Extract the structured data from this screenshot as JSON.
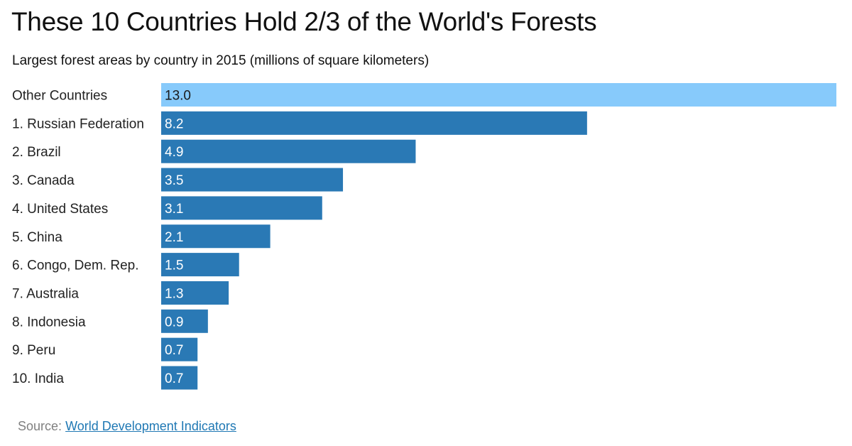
{
  "header": {
    "title": "These 10 Countries Hold 2/3 of the World's Forests",
    "subtitle": "Largest forest areas by country in 2015 (millions of square kilometers)"
  },
  "colors": {
    "highlight": "#87cafb",
    "bar": "#2a79b5",
    "highlight_label": "#1a1a1a",
    "bar_label": "#ffffff",
    "category_label": "#222222"
  },
  "chart_data": {
    "type": "bar",
    "orientation": "horizontal",
    "title": "These 10 Countries Hold 2/3 of the World's Forests",
    "subtitle": "Largest forest areas by country in 2015 (millions of square kilometers)",
    "categories": [
      "Other Countries",
      "1. Russian Federation",
      "2. Brazil",
      "3. Canada",
      "4. United States",
      "5. China",
      "6. Congo, Dem. Rep.",
      "7. Australia",
      "8. Indonesia",
      "9. Peru",
      "10. India"
    ],
    "values": [
      13.0,
      8.2,
      4.9,
      3.5,
      3.1,
      2.1,
      1.5,
      1.3,
      0.9,
      0.7,
      0.7
    ],
    "value_labels": [
      "13.0",
      "8.2",
      "4.9",
      "3.5",
      "3.1",
      "2.1",
      "1.5",
      "1.3",
      "0.9",
      "0.7",
      "0.7"
    ],
    "highlighted_categories": [
      "Other Countries"
    ],
    "xlim": [
      0,
      13.0
    ],
    "grid": false,
    "legend": "none"
  },
  "footer": {
    "source_label": "Source:",
    "source_link": "World Development Indicators"
  }
}
